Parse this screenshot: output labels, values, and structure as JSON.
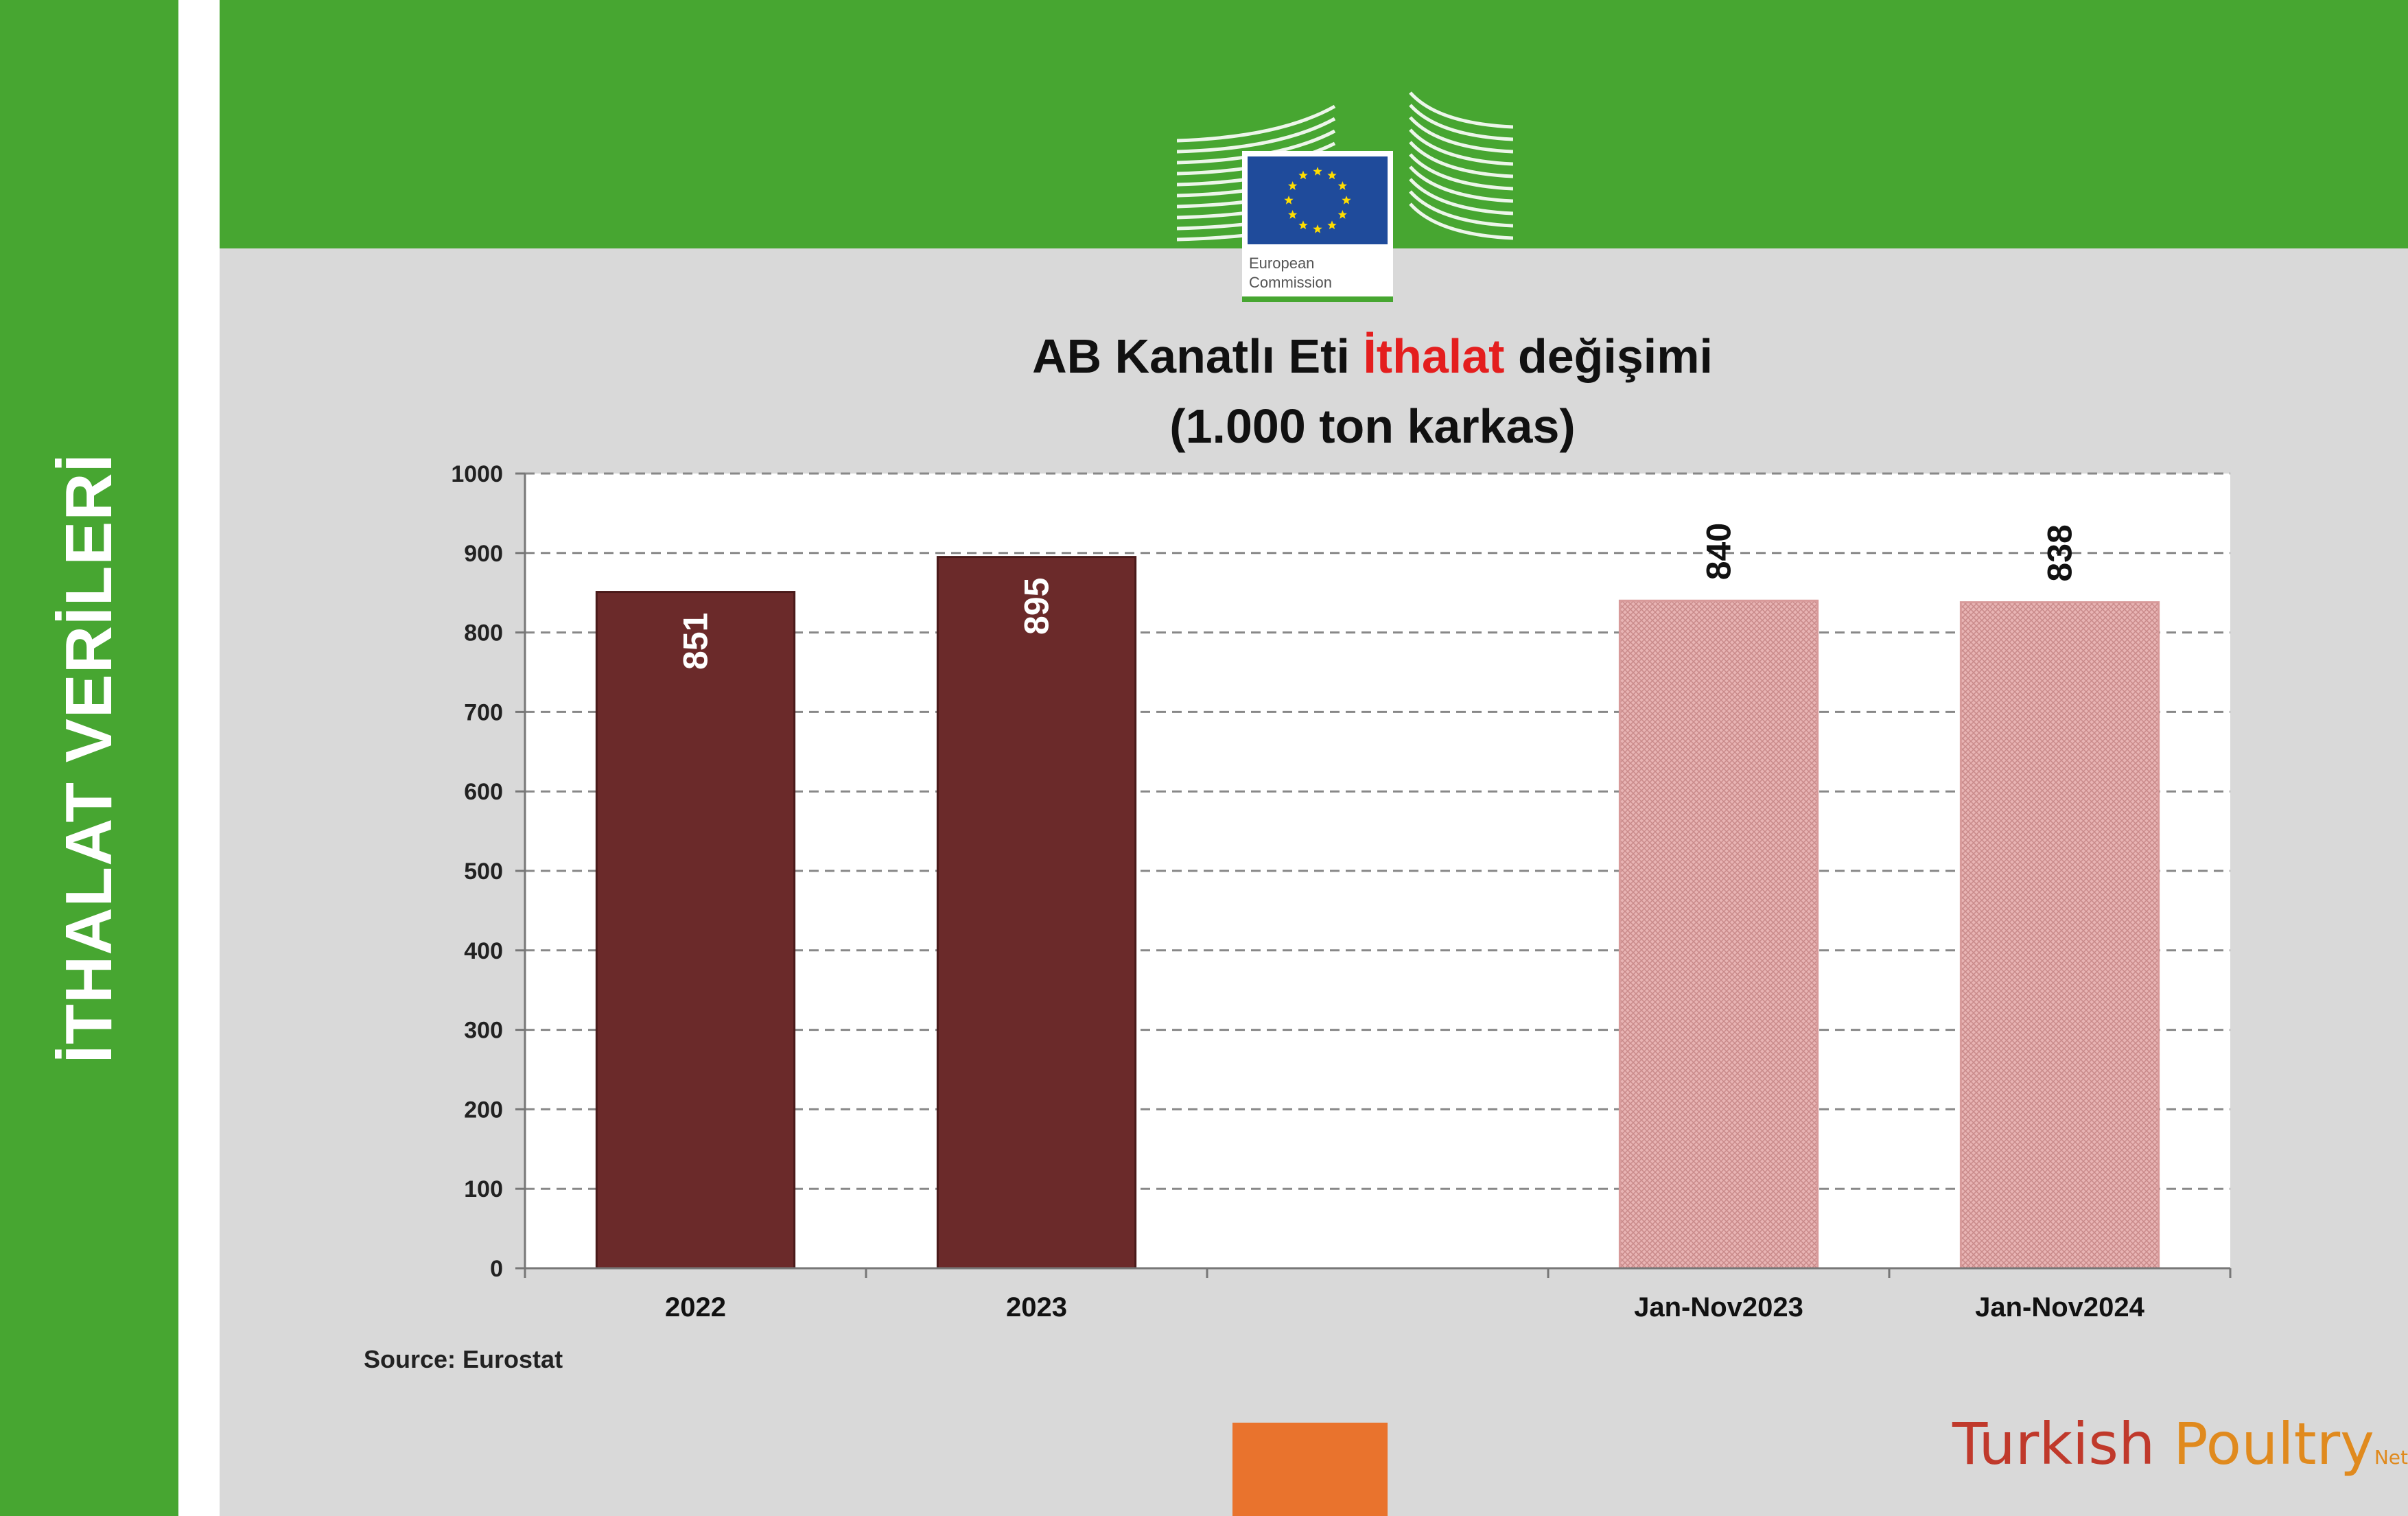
{
  "sidebar": {
    "title": "İTHALAT VERİLERİ"
  },
  "logo": {
    "line1": "European",
    "line2": "Commission"
  },
  "chart_data": {
    "type": "bar",
    "title_parts": [
      "AB Kanatlı Eti ",
      "İthalat",
      " değişimi"
    ],
    "subtitle": "(1.000 ton karkas)",
    "categories": [
      "2022",
      "2023",
      "",
      "Jan-Nov2023",
      "Jan-Nov2024"
    ],
    "values": [
      851,
      895,
      null,
      840,
      838
    ],
    "value_labels": [
      "851",
      "895",
      "",
      "840",
      "838"
    ],
    "bar_styles": [
      "solid",
      "solid",
      "none",
      "hatched",
      "hatched"
    ],
    "y_ticks": [
      "0",
      "100",
      "200",
      "300",
      "400",
      "500",
      "600",
      "700",
      "800",
      "900",
      "1000"
    ],
    "ylim": [
      0,
      1000
    ],
    "grid": true,
    "legend": "none",
    "colors": {
      "solid": "#6b2a2a",
      "hatched": "#e3a6a6",
      "grid": "#888888",
      "axis": "#777777"
    }
  },
  "source": "Source: Eurostat",
  "brand": {
    "part1": "Turkish ",
    "part2": "Poultry",
    "suffix": "Net"
  }
}
